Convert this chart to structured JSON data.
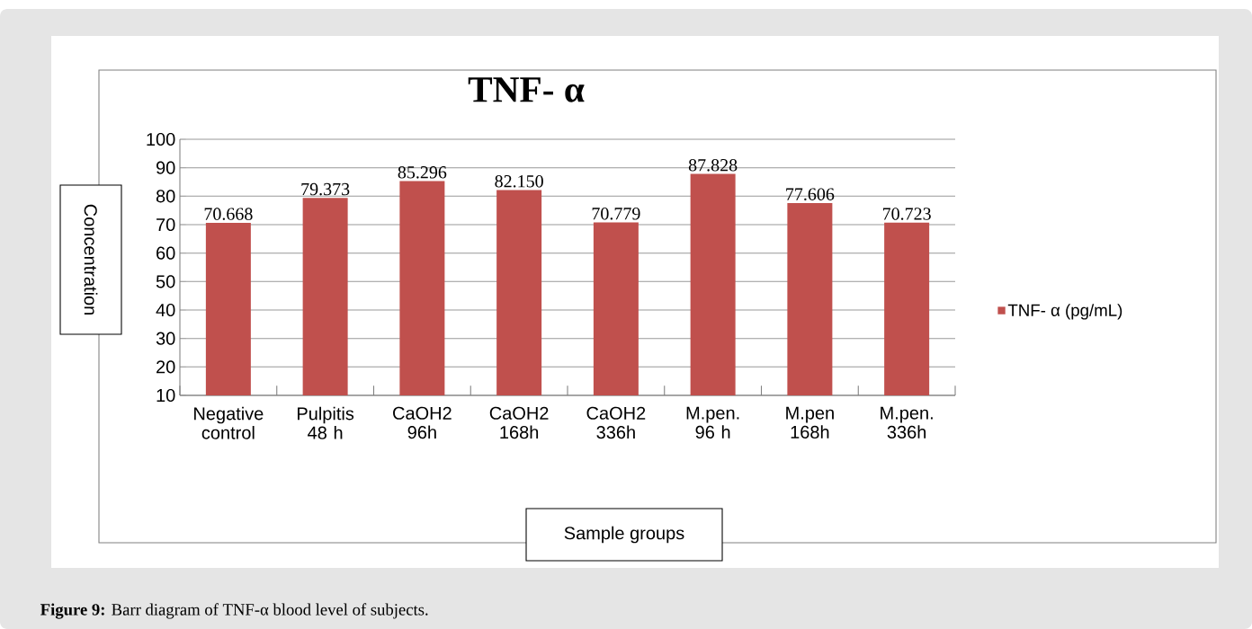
{
  "chart_data": {
    "type": "bar",
    "title": "TNF- α",
    "xlabel": "Sample groups",
    "ylabel": "Concentration",
    "categories": [
      "Negative control",
      "Pulpitis 48 h",
      "CaOH2 96h",
      "CaOH2 168h",
      "CaOH2 336h",
      "M.pen. 96 h",
      "M.pen 168h",
      "M.pen. 336h"
    ],
    "series": [
      {
        "name": "TNF- α (pg/mL)",
        "color": "#c0504d",
        "values": [
          70.668,
          79.373,
          85.296,
          82.15,
          70.779,
          87.828,
          77.606,
          70.723
        ]
      }
    ],
    "value_labels": [
      "70.668",
      "79.373",
      "85.296",
      "82.150",
      "70.779",
      "87.828",
      "77.606",
      "70.723"
    ],
    "ylim": [
      10,
      100
    ],
    "yticks": [
      10,
      20,
      30,
      40,
      50,
      60,
      70,
      80,
      90,
      100
    ],
    "grid": "y",
    "legend": "right",
    "annotations": [
      "**Figure 9:** Barr diagram of TNF-α blood level of subjects."
    ]
  }
}
